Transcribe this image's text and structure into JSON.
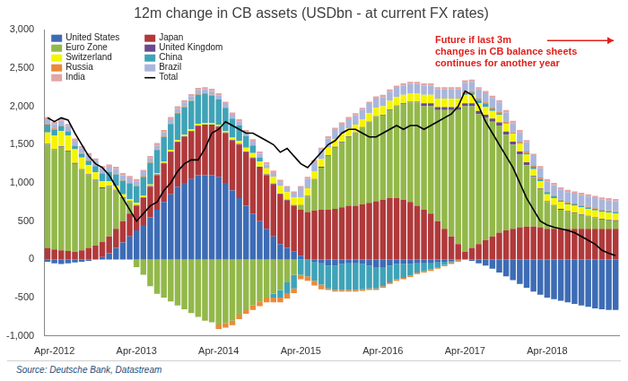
{
  "chart_data": {
    "type": "bar",
    "title": "12m change in CB assets (USDbn - at current FX rates)",
    "source": "Source: Deutsche Bank, Datastream",
    "annotation": [
      "Future if last 3m",
      "changes in CB balance sheets",
      "continues for another year"
    ],
    "stacked": true,
    "grid": false,
    "legend": "top-left",
    "ylim": [
      -1000,
      3000
    ],
    "yticks": [
      {
        "value": -1000,
        "label": "-1,000"
      },
      -500,
      0,
      500,
      {
        "value": 1000,
        "label": "1,000"
      },
      {
        "value": 1500,
        "label": "1,500"
      },
      {
        "value": 2000,
        "label": "2,000"
      },
      {
        "value": 2500,
        "label": "2,500"
      },
      {
        "value": 3000,
        "label": "3,000"
      }
    ],
    "categories": [
      null,
      "Apr-2012",
      null,
      null,
      null,
      null,
      null,
      null,
      null,
      null,
      null,
      null,
      null,
      "Apr-2013",
      null,
      null,
      null,
      null,
      null,
      null,
      null,
      null,
      null,
      null,
      null,
      "Apr-2014",
      null,
      null,
      null,
      null,
      null,
      null,
      null,
      null,
      null,
      null,
      null,
      "Apr-2015",
      null,
      null,
      null,
      null,
      null,
      null,
      null,
      null,
      null,
      null,
      null,
      "Apr-2016",
      null,
      null,
      null,
      null,
      null,
      null,
      null,
      null,
      null,
      null,
      null,
      "Apr-2017",
      null,
      null,
      null,
      null,
      null,
      null,
      null,
      null,
      null,
      null,
      null,
      "Apr-2018",
      null,
      null,
      null,
      null,
      null,
      null,
      null,
      null,
      null,
      null
    ],
    "series": [
      {
        "name": "United States",
        "color": "#3d6cb5",
        "values": [
          -30,
          -50,
          -60,
          -50,
          -40,
          -30,
          -20,
          0,
          30,
          80,
          150,
          220,
          300,
          380,
          450,
          550,
          650,
          750,
          850,
          950,
          1000,
          1050,
          1100,
          1100,
          1100,
          1080,
          1000,
          900,
          800,
          700,
          600,
          500,
          400,
          300,
          200,
          150,
          100,
          50,
          0,
          -30,
          -50,
          -80,
          -80,
          -60,
          -50,
          -50,
          -60,
          -80,
          -100,
          -100,
          -80,
          -60,
          -60,
          -60,
          -50,
          -50,
          -50,
          -40,
          -30,
          -20,
          -10,
          0,
          -20,
          -50,
          -80,
          -120,
          -170,
          -220,
          -270,
          -320,
          -370,
          -420,
          -460,
          -500,
          -520,
          -540,
          -560,
          -580,
          -600,
          -620,
          -640,
          -650,
          -660,
          -660
        ]
      },
      {
        "name": "Japan",
        "color": "#b0393b",
        "values": [
          150,
          130,
          120,
          110,
          100,
          120,
          150,
          180,
          200,
          220,
          250,
          280,
          300,
          320,
          350,
          400,
          450,
          500,
          550,
          580,
          600,
          620,
          640,
          650,
          650,
          650,
          650,
          650,
          700,
          700,
          720,
          700,
          700,
          680,
          650,
          620,
          600,
          600,
          620,
          640,
          650,
          650,
          660,
          680,
          700,
          700,
          720,
          740,
          760,
          780,
          800,
          800,
          780,
          750,
          700,
          650,
          600,
          500,
          400,
          300,
          200,
          100,
          150,
          200,
          250,
          300,
          350,
          380,
          400,
          420,
          430,
          430,
          420,
          400,
          400,
          400,
          400,
          400,
          400,
          400,
          400,
          400,
          400,
          400
        ]
      },
      {
        "name": "Euro Zone",
        "color": "#93b84a",
        "values": [
          1350,
          1300,
          1350,
          1300,
          1150,
          1050,
          950,
          850,
          700,
          650,
          500,
          300,
          150,
          -100,
          -200,
          -350,
          -450,
          -500,
          -550,
          -600,
          -650,
          -700,
          -750,
          -800,
          -820,
          -850,
          -830,
          -800,
          -720,
          -650,
          -600,
          -550,
          -500,
          -450,
          -400,
          -300,
          -200,
          50,
          200,
          400,
          550,
          700,
          800,
          850,
          900,
          950,
          1000,
          1050,
          1100,
          1100,
          1150,
          1200,
          1250,
          1300,
          1350,
          1350,
          1400,
          1450,
          1550,
          1650,
          1750,
          1900,
          1850,
          1700,
          1600,
          1500,
          1400,
          1250,
          1100,
          950,
          800,
          650,
          500,
          350,
          300,
          250,
          220,
          200,
          180,
          160,
          140,
          120,
          110,
          100
        ]
      },
      {
        "name": "United Kingdom",
        "color": "#6a4a8c",
        "values": [
          10,
          10,
          10,
          10,
          10,
          10,
          10,
          10,
          10,
          10,
          10,
          10,
          10,
          10,
          10,
          10,
          10,
          10,
          10,
          10,
          10,
          10,
          10,
          10,
          10,
          10,
          10,
          10,
          10,
          10,
          10,
          10,
          10,
          10,
          10,
          10,
          10,
          10,
          10,
          10,
          10,
          10,
          10,
          10,
          10,
          10,
          10,
          10,
          10,
          10,
          10,
          10,
          10,
          10,
          10,
          40,
          40,
          40,
          40,
          40,
          40,
          40,
          40,
          40,
          40,
          40,
          40,
          40,
          40,
          40,
          40,
          10,
          10,
          10,
          10,
          10,
          10,
          10,
          10,
          10,
          10,
          10,
          10,
          10
        ]
      },
      {
        "name": "Switzerland",
        "color": "#f5f500",
        "values": [
          150,
          180,
          200,
          200,
          180,
          150,
          120,
          100,
          80,
          60,
          50,
          40,
          30,
          30,
          20,
          20,
          20,
          20,
          20,
          20,
          20,
          20,
          20,
          20,
          20,
          20,
          20,
          30,
          40,
          50,
          60,
          70,
          80,
          90,
          100,
          100,
          100,
          100,
          100,
          100,
          100,
          100,
          100,
          100,
          100,
          100,
          100,
          110,
          110,
          110,
          110,
          110,
          110,
          110,
          110,
          110,
          110,
          110,
          110,
          110,
          110,
          110,
          110,
          100,
          100,
          100,
          100,
          100,
          100,
          100,
          100,
          90,
          90,
          90,
          90,
          90,
          90,
          90,
          90,
          90,
          90,
          90,
          90,
          90
        ]
      },
      {
        "name": "China",
        "color": "#3fa3b8",
        "values": [
          100,
          80,
          60,
          50,
          40,
          50,
          60,
          80,
          100,
          120,
          150,
          180,
          200,
          220,
          250,
          280,
          300,
          320,
          340,
          350,
          360,
          370,
          380,
          380,
          360,
          330,
          300,
          250,
          200,
          150,
          100,
          50,
          0,
          -50,
          -100,
          -150,
          -180,
          -200,
          -220,
          -250,
          -280,
          -300,
          -320,
          -340,
          -350,
          -350,
          -330,
          -300,
          -280,
          -250,
          -220,
          -200,
          -180,
          -150,
          -120,
          -100,
          -80,
          -60,
          -40,
          -20,
          0,
          20,
          30,
          40,
          40,
          30,
          20,
          10,
          0,
          10,
          20,
          30,
          30,
          30,
          30,
          20,
          20,
          20,
          20,
          20,
          20,
          20,
          20,
          20
        ]
      },
      {
        "name": "Russia",
        "color": "#e98b3a",
        "values": [
          10,
          10,
          10,
          10,
          10,
          10,
          10,
          10,
          10,
          10,
          10,
          10,
          10,
          10,
          10,
          10,
          10,
          10,
          10,
          10,
          10,
          10,
          10,
          10,
          10,
          -60,
          -60,
          -60,
          -60,
          -60,
          -60,
          -60,
          -60,
          -60,
          -60,
          -60,
          -60,
          -60,
          -60,
          -60,
          -60,
          -20,
          -20,
          -20,
          -20,
          -20,
          -20,
          -20,
          -20,
          -20,
          -20,
          -20,
          -20,
          -20,
          -20,
          -20,
          -20,
          -20,
          -20,
          -20,
          -20,
          20,
          20,
          20,
          20,
          20,
          20,
          20,
          20,
          20,
          20,
          20,
          20,
          10,
          10,
          10,
          10,
          10,
          10,
          10,
          10,
          10,
          10,
          10
        ]
      },
      {
        "name": "Brazil",
        "color": "#a9b6dc",
        "values": [
          60,
          60,
          60,
          60,
          60,
          60,
          60,
          60,
          60,
          60,
          60,
          60,
          60,
          50,
          50,
          50,
          50,
          50,
          50,
          50,
          50,
          50,
          50,
          50,
          50,
          50,
          50,
          50,
          50,
          50,
          50,
          50,
          50,
          50,
          50,
          50,
          50,
          120,
          120,
          120,
          120,
          120,
          120,
          120,
          120,
          120,
          120,
          120,
          120,
          120,
          120,
          120,
          120,
          120,
          120,
          120,
          120,
          120,
          120,
          120,
          120,
          120,
          120,
          120,
          120,
          120,
          120,
          120,
          120,
          120,
          120,
          120,
          120,
          130,
          130,
          130,
          130,
          130,
          130,
          130,
          130,
          130,
          130,
          130
        ]
      },
      {
        "name": "India",
        "color": "#e3a5a5",
        "values": [
          30,
          30,
          30,
          30,
          30,
          30,
          30,
          30,
          30,
          30,
          30,
          30,
          30,
          30,
          30,
          30,
          30,
          30,
          30,
          30,
          30,
          30,
          30,
          30,
          30,
          30,
          30,
          30,
          30,
          30,
          30,
          30,
          30,
          30,
          30,
          30,
          30,
          30,
          30,
          30,
          30,
          30,
          30,
          30,
          30,
          30,
          30,
          30,
          30,
          30,
          30,
          30,
          30,
          30,
          30,
          30,
          30,
          30,
          30,
          30,
          30,
          30,
          30,
          30,
          30,
          30,
          30,
          30,
          30,
          30,
          30,
          30,
          30,
          30,
          30,
          30,
          30,
          30,
          30,
          30,
          30,
          30,
          30,
          30
        ]
      },
      {
        "name": "Total",
        "color": "#000000",
        "type": "line",
        "values": [
          1850,
          1800,
          1850,
          1820,
          1650,
          1500,
          1350,
          1250,
          1200,
          1100,
          950,
          800,
          650,
          500,
          600,
          700,
          750,
          900,
          1000,
          1150,
          1250,
          1300,
          1300,
          1450,
          1650,
          1700,
          1800,
          1750,
          1700,
          1650,
          1650,
          1600,
          1550,
          1500,
          1400,
          1450,
          1350,
          1250,
          1200,
          1300,
          1400,
          1500,
          1550,
          1650,
          1700,
          1700,
          1650,
          1600,
          1600,
          1650,
          1700,
          1750,
          1700,
          1750,
          1750,
          1700,
          1750,
          1800,
          1850,
          1900,
          2000,
          2200,
          2150,
          2000,
          1800,
          1650,
          1500,
          1350,
          1200,
          1000,
          800,
          650,
          500,
          450,
          420,
          400,
          380,
          350,
          300,
          250,
          200,
          120,
          80,
          50
        ]
      }
    ]
  }
}
